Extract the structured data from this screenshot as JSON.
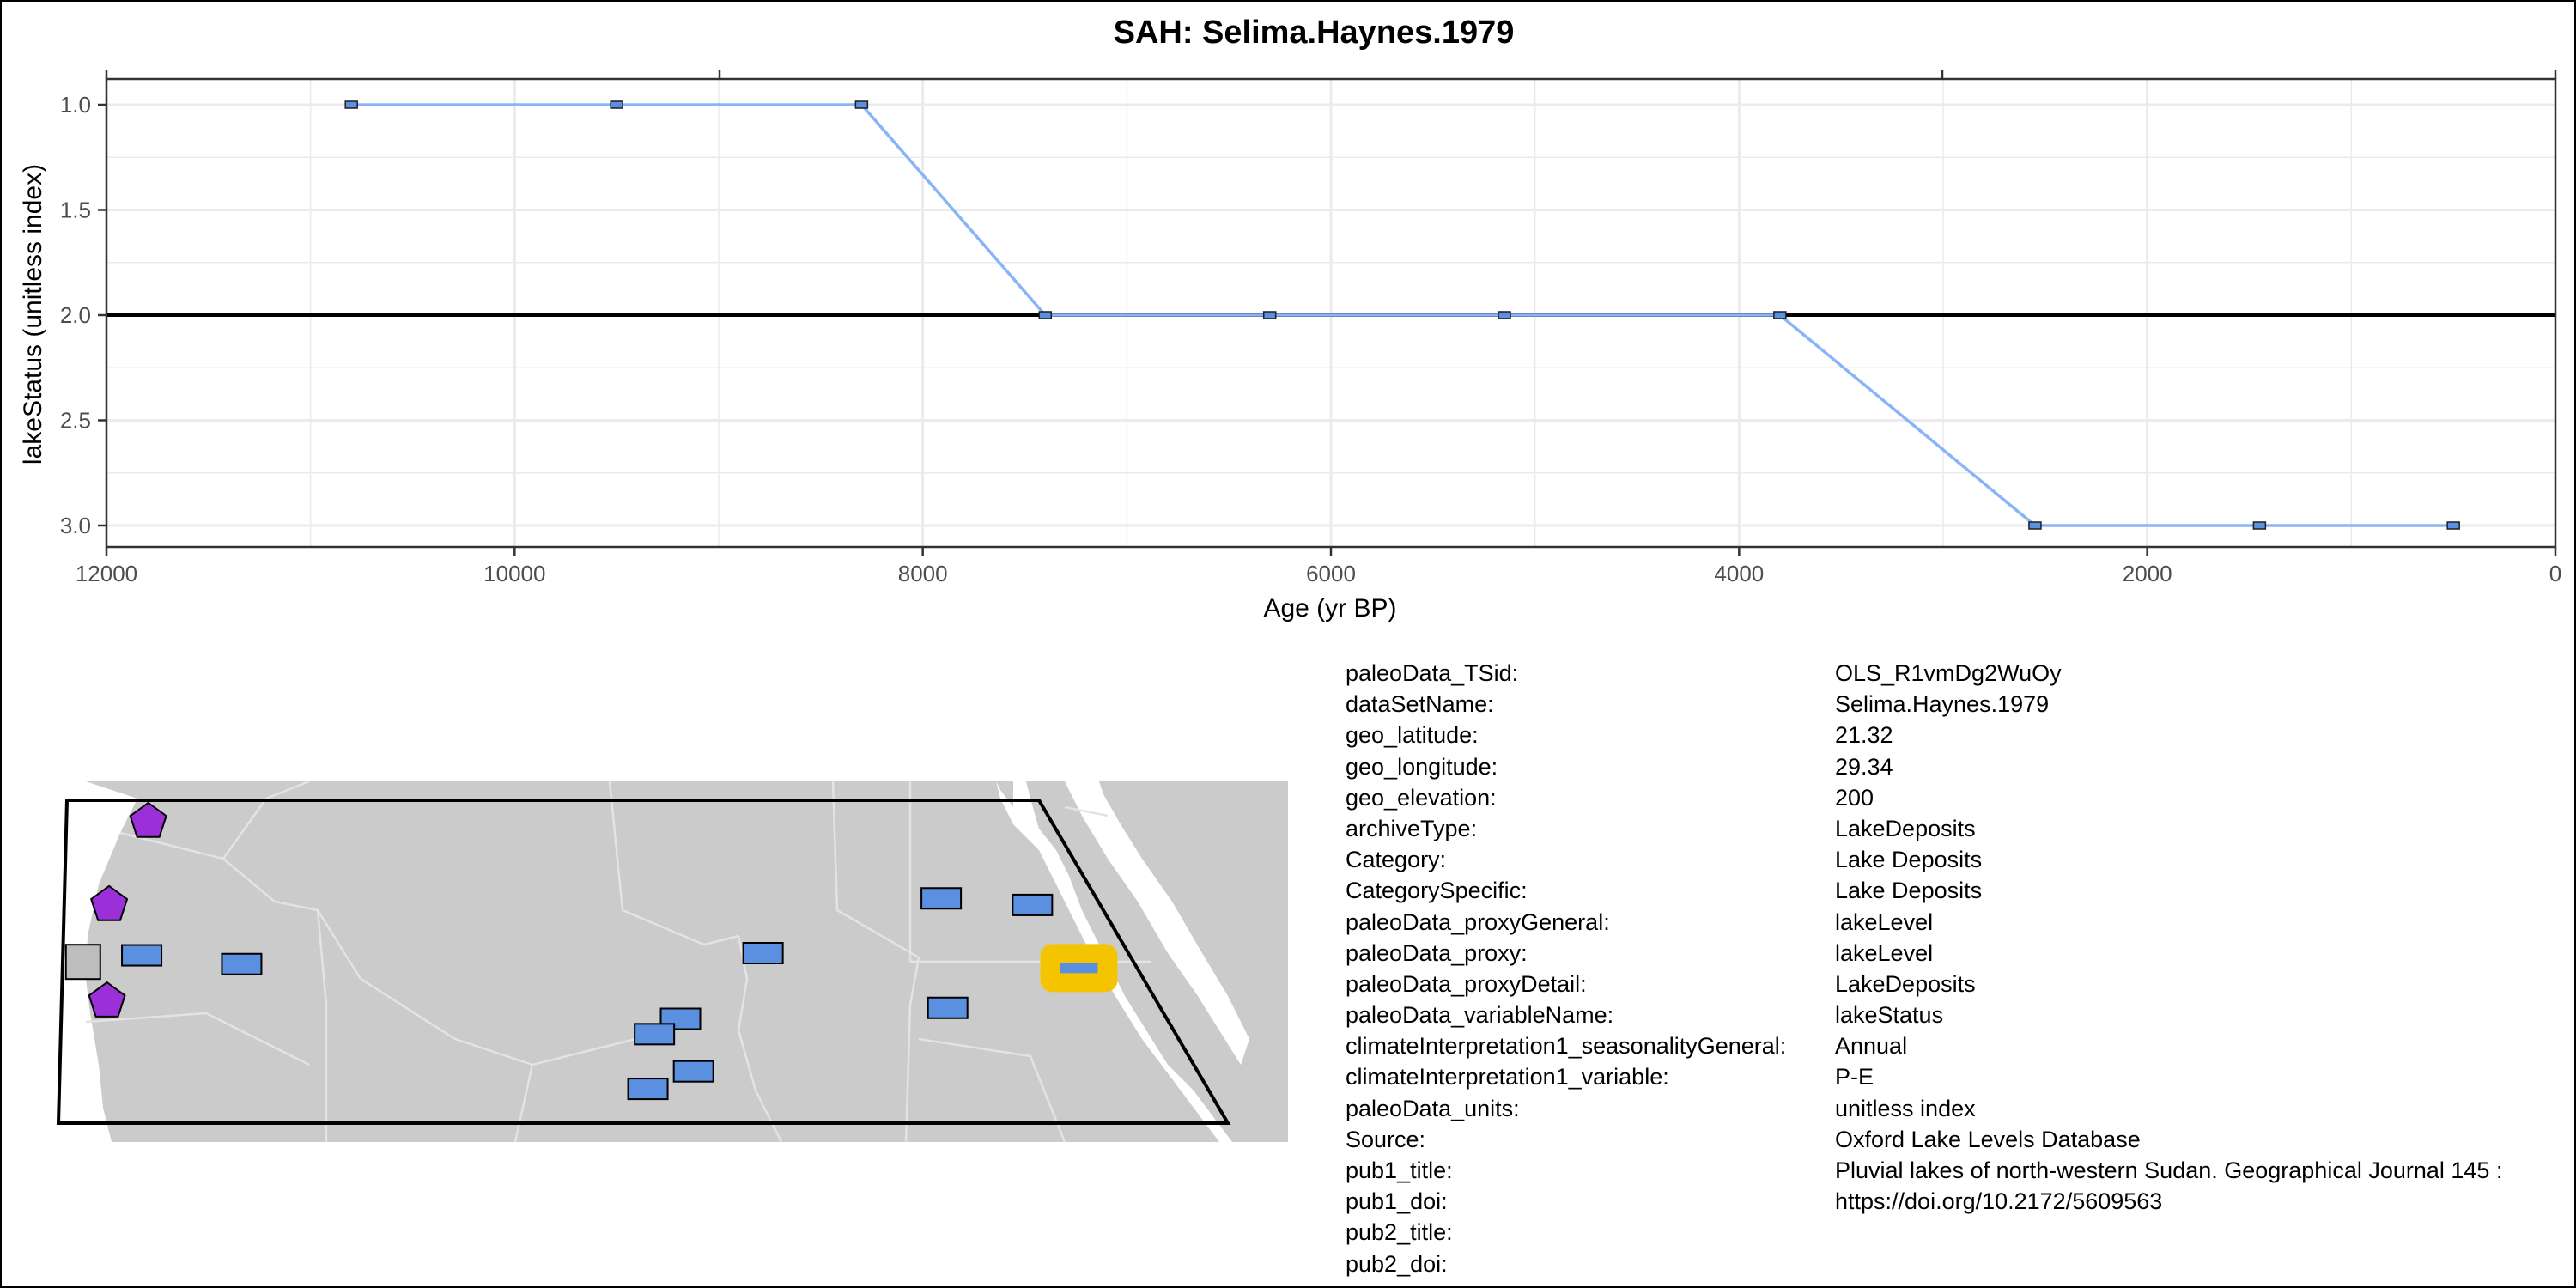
{
  "colors": {
    "series_line": "#8AB4F8",
    "marker_fill": "#5B8FE0",
    "land": "#CBCBCB",
    "border": "#E3E3E3",
    "site_fill": "#5B8FE0",
    "highlight": "#F5C400",
    "pentagon": "#9B30D9",
    "gray_site": "#BDBDBD",
    "grid": "#EBEBEB"
  },
  "chart_data": {
    "type": "line",
    "title": "SAH: Selima.Haynes.1979",
    "xlabel": "Age (yr BP)",
    "ylabel": "lakeStatus (unitless index)",
    "xlim": [
      12000,
      0
    ],
    "ylim": [
      1.0,
      3.0
    ],
    "y_reversed": true,
    "x_ticks": [
      "12000",
      "10000",
      "8000",
      "6000",
      "4000",
      "2000",
      "0"
    ],
    "y_ticks": [
      "1.0",
      "1.5",
      "2.0",
      "2.5",
      "3.0"
    ],
    "reference_line_y": 2.0,
    "grid": true,
    "series": [
      {
        "x": [
          10800,
          9500,
          8300,
          7400,
          6300,
          5150,
          3800,
          2550,
          1450,
          500
        ],
        "y": [
          1,
          1,
          1,
          2,
          2,
          2,
          2,
          3,
          3,
          3
        ]
      }
    ]
  },
  "map": {
    "sites": [
      {
        "kind": "pentagon",
        "lon": -13.5,
        "lat": 28.0
      },
      {
        "kind": "pentagon",
        "lon": -15.3,
        "lat": 24.2
      },
      {
        "kind": "pentagon",
        "lon": -15.4,
        "lat": 19.8
      },
      {
        "kind": "square",
        "lon": -16.5,
        "lat": 21.6
      },
      {
        "kind": "rect",
        "lon": -13.8,
        "lat": 21.9
      },
      {
        "kind": "rect",
        "lon": -9.2,
        "lat": 21.5
      },
      {
        "kind": "rect",
        "lon": 14.8,
        "lat": 22.0
      },
      {
        "kind": "rect",
        "lon": 11.0,
        "lat": 19.0
      },
      {
        "kind": "rect",
        "lon": 9.8,
        "lat": 18.3
      },
      {
        "kind": "rect",
        "lon": 11.6,
        "lat": 16.6
      },
      {
        "kind": "rect",
        "lon": 9.5,
        "lat": 15.8
      },
      {
        "kind": "rect",
        "lon": 23.0,
        "lat": 24.5
      },
      {
        "kind": "rect",
        "lon": 27.2,
        "lat": 24.2
      },
      {
        "kind": "rect",
        "lon": 23.3,
        "lat": 19.5
      },
      {
        "kind": "highlight",
        "lon": 29.34,
        "lat": 21.32
      }
    ]
  },
  "metadata": [
    {
      "key": "paleoData_TSid:",
      "value": "OLS_R1vmDg2WuOy"
    },
    {
      "key": "dataSetName:",
      "value": "Selima.Haynes.1979"
    },
    {
      "key": "geo_latitude:",
      "value": "21.32"
    },
    {
      "key": "geo_longitude:",
      "value": "29.34"
    },
    {
      "key": "geo_elevation:",
      "value": "200"
    },
    {
      "key": "archiveType:",
      "value": "LakeDeposits"
    },
    {
      "key": "Category:",
      "value": "Lake Deposits"
    },
    {
      "key": "CategorySpecific:",
      "value": "Lake Deposits"
    },
    {
      "key": "paleoData_proxyGeneral:",
      "value": "lakeLevel"
    },
    {
      "key": "paleoData_proxy:",
      "value": "lakeLevel"
    },
    {
      "key": "paleoData_proxyDetail:",
      "value": "LakeDeposits"
    },
    {
      "key": "paleoData_variableName:",
      "value": "lakeStatus"
    },
    {
      "key": "climateInterpretation1_seasonalityGeneral:",
      "value": "Annual"
    },
    {
      "key": "climateInterpretation1_variable:",
      "value": "P-E"
    },
    {
      "key": "paleoData_units:",
      "value": "unitless index"
    },
    {
      "key": "Source:",
      "value": "Oxford Lake Levels Database"
    },
    {
      "key": "pub1_title:",
      "value": "Pluvial lakes of north-western Sudan. Geographical Journal 145 :"
    },
    {
      "key": "pub1_doi:",
      "value": "https://doi.org/10.2172/5609563"
    },
    {
      "key": "pub2_title:",
      "value": ""
    },
    {
      "key": "pub2_doi:",
      "value": ""
    }
  ]
}
